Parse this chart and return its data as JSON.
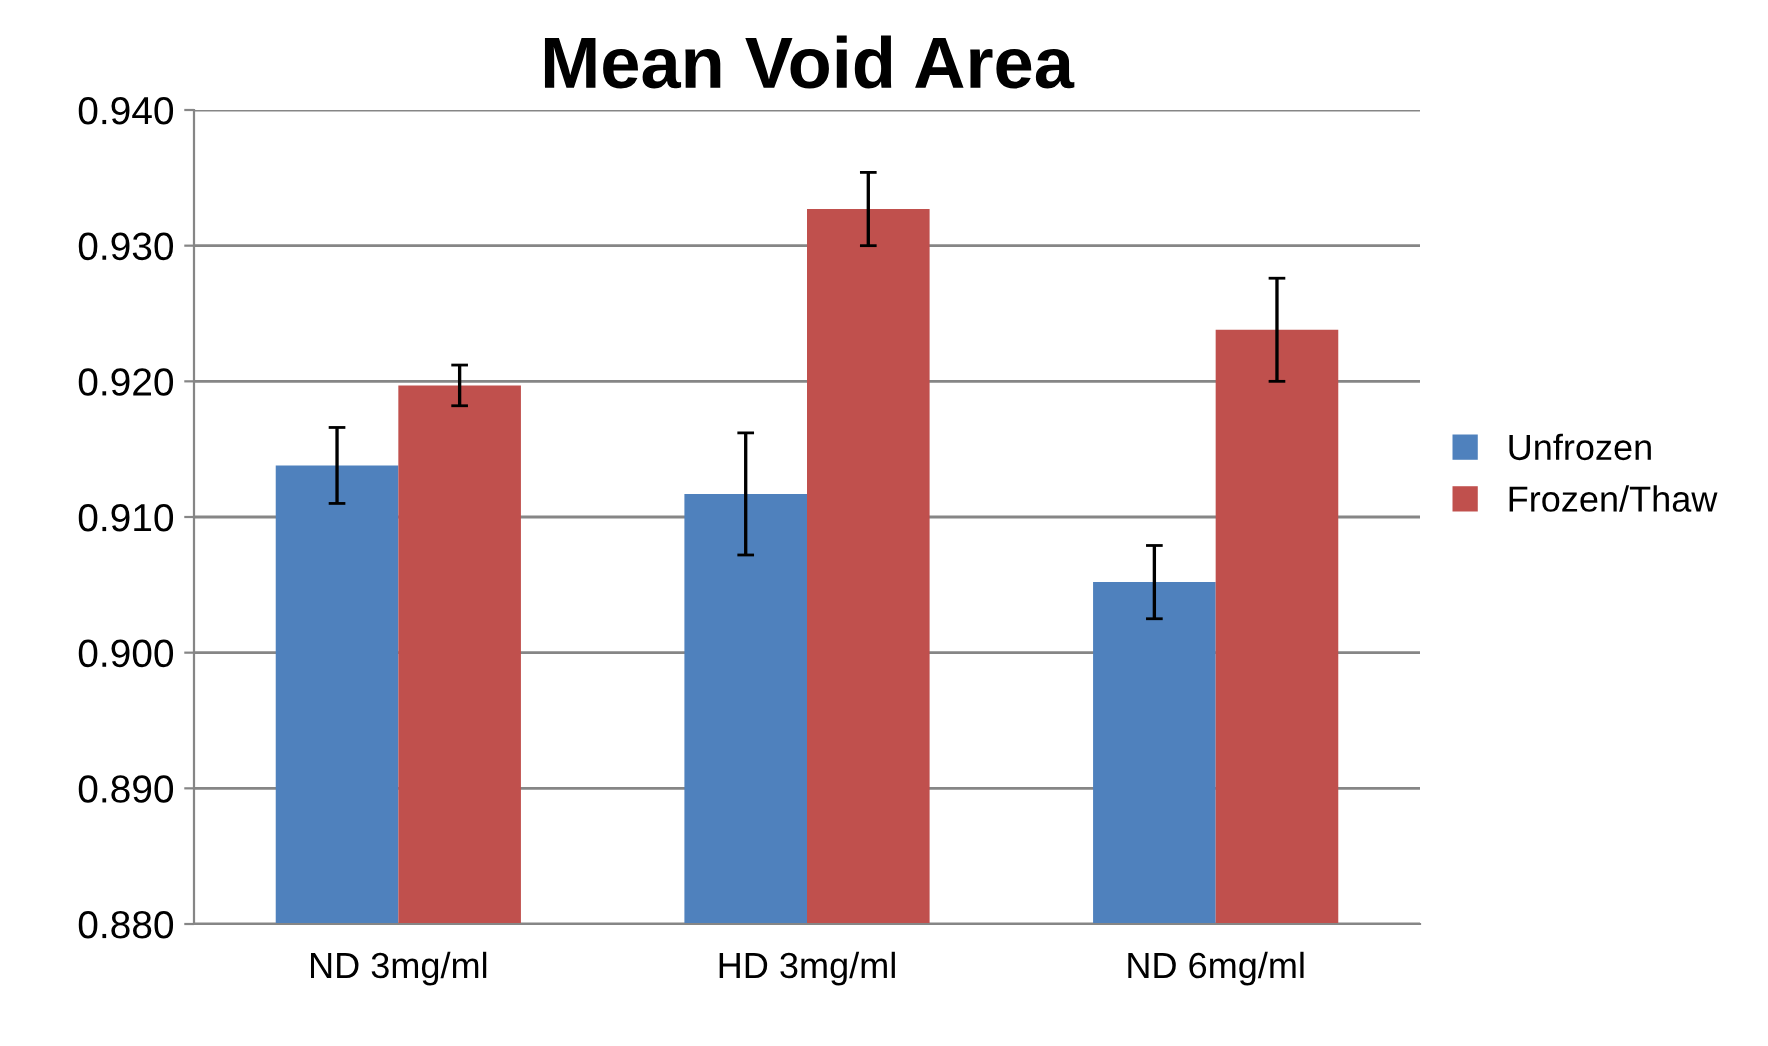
{
  "chart_data": {
    "type": "bar",
    "title": "Mean Void Area",
    "categories": [
      "ND 3mg/ml",
      "HD 3mg/ml",
      "ND 6mg/ml"
    ],
    "series": [
      {
        "name": "Unfrozen",
        "color": "#4f81bd",
        "values": [
          0.9138,
          0.9117,
          0.9052
        ],
        "errors": [
          0.0028,
          0.0045,
          0.0027
        ]
      },
      {
        "name": "Frozen/Thaw",
        "color": "#c0504d",
        "values": [
          0.9197,
          0.9327,
          0.9238
        ],
        "errors": [
          0.0015,
          0.0027,
          0.0038
        ]
      }
    ],
    "ylim": [
      0.88,
      0.94
    ],
    "yticks": [
      {
        "value": 0.88,
        "label": "0.880"
      },
      {
        "value": 0.89,
        "label": "0.890"
      },
      {
        "value": 0.9,
        "label": "0.900"
      },
      {
        "value": 0.91,
        "label": "0.910"
      },
      {
        "value": 0.92,
        "label": "0.920"
      },
      {
        "value": 0.93,
        "label": "0.930"
      },
      {
        "value": 0.94,
        "label": "0.940"
      }
    ],
    "grid": "y",
    "legend": "right"
  }
}
